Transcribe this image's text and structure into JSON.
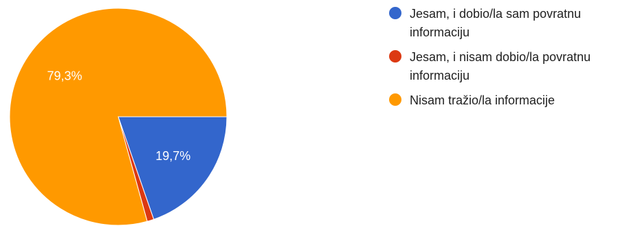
{
  "chart_data": {
    "type": "pie",
    "categories": [
      "Jesam, i dobio/la sam povratnu informaciju",
      "Jesam, i nisam dobio/la povratnu informaciju",
      "Nisam tražio/la informacije"
    ],
    "values": [
      19.7,
      1.0,
      79.3
    ],
    "data_labels": [
      "19,7%",
      "",
      "79,3%"
    ],
    "colors": [
      "#3366cc",
      "#dc3912",
      "#ff9900"
    ],
    "legend": "right"
  },
  "legend": {
    "items": [
      {
        "lines": [
          "Jesam, i dobio/la sam povratnu",
          "informaciju"
        ],
        "color": "#3366cc"
      },
      {
        "lines": [
          "Jesam, i nisam dobio/la povratnu",
          "informaciju"
        ],
        "color": "#dc3912"
      },
      {
        "lines": [
          "Nisam tražio/la informacije"
        ],
        "color": "#ff9900"
      }
    ]
  }
}
